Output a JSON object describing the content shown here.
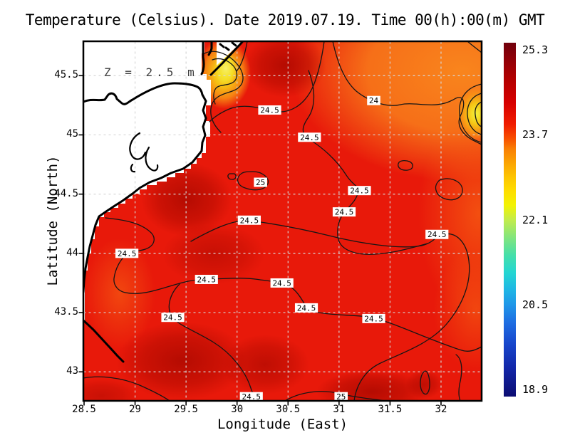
{
  "title": "Temperature (Celsius). Date 2019.07.19. Time 00(h):00(m) GMT",
  "annotation": "Z = 2.5 m",
  "chart_data": {
    "type": "heatmap",
    "title": "Temperature (Celsius). Date 2019.07.19. Time 00(h):00(m) GMT",
    "variable": "Temperature",
    "units": "Celsius",
    "date": "2019.07.19",
    "time": "00(h):00(m) GMT",
    "depth_annotation": "Z = 2.5 m",
    "xlabel": "Longitude (East)",
    "ylabel": "Latitude (North)",
    "xlim": [
      28.5,
      32.4
    ],
    "ylim": [
      42.76,
      45.79
    ],
    "x_ticks": [
      "28.5",
      "29",
      "29.5",
      "30",
      "30.5",
      "31",
      "31.5",
      "32"
    ],
    "y_ticks": [
      "43",
      "43.5",
      "44",
      "44.5",
      "45",
      "45.5"
    ],
    "grid": true,
    "land_color": "#ffffff",
    "sea_base_color": "#e8190a",
    "contour_line_color": "#161616",
    "colorbar": {
      "position": "right",
      "tick_labels": [
        "25.3",
        "23.7",
        "22.1",
        "20.5",
        "18.9"
      ],
      "vmax_label": 25.3,
      "vmin_label": 18.9,
      "colormap_stops": [
        "#70010c",
        "#8c0008",
        "#b10000",
        "#d70000",
        "#f01c00",
        "#f84e00",
        "#f97f04",
        "#fba402",
        "#fdc501",
        "#fede00",
        "#f2f303",
        "#c3ec4b",
        "#83e57d",
        "#46dfa9",
        "#24d6d2",
        "#1fb5e5",
        "#1f97e8",
        "#1e6ee2",
        "#1747cc",
        "#1226a8",
        "#0c0d72"
      ]
    },
    "contour_labels": [
      {
        "value": "24.5",
        "lon": 30.32,
        "lat": 45.21
      },
      {
        "value": "24",
        "lon": 31.34,
        "lat": 45.29
      },
      {
        "value": "24.5",
        "lon": 30.71,
        "lat": 44.98
      },
      {
        "value": "25",
        "lon": 30.23,
        "lat": 44.6
      },
      {
        "value": "24.5",
        "lon": 31.2,
        "lat": 44.53
      },
      {
        "value": "24.5",
        "lon": 31.05,
        "lat": 44.35
      },
      {
        "value": "24.5",
        "lon": 30.12,
        "lat": 44.28
      },
      {
        "value": "24.5",
        "lon": 31.96,
        "lat": 44.16
      },
      {
        "value": "24.5",
        "lon": 28.92,
        "lat": 44.0
      },
      {
        "value": "24.5",
        "lon": 29.7,
        "lat": 43.78
      },
      {
        "value": "24.5",
        "lon": 30.44,
        "lat": 43.75
      },
      {
        "value": "24.5",
        "lon": 30.68,
        "lat": 43.54
      },
      {
        "value": "24.5",
        "lon": 29.37,
        "lat": 43.46
      },
      {
        "value": "24.5",
        "lon": 31.34,
        "lat": 43.45
      },
      {
        "value": "24.5",
        "lon": 30.14,
        "lat": 42.79
      },
      {
        "value": "25",
        "lon": 31.02,
        "lat": 42.79
      }
    ],
    "field_description": "Black Sea west-coast SST field: mostly red 24.5-25 C, orange 23.7-24.5 C in the northeast and along the eastern edge, yellow ~23 C plume at the Danube delta coast and a yellow patch on the eastern border, darker red >25 C patches; white land mask with black coastline at left."
  }
}
